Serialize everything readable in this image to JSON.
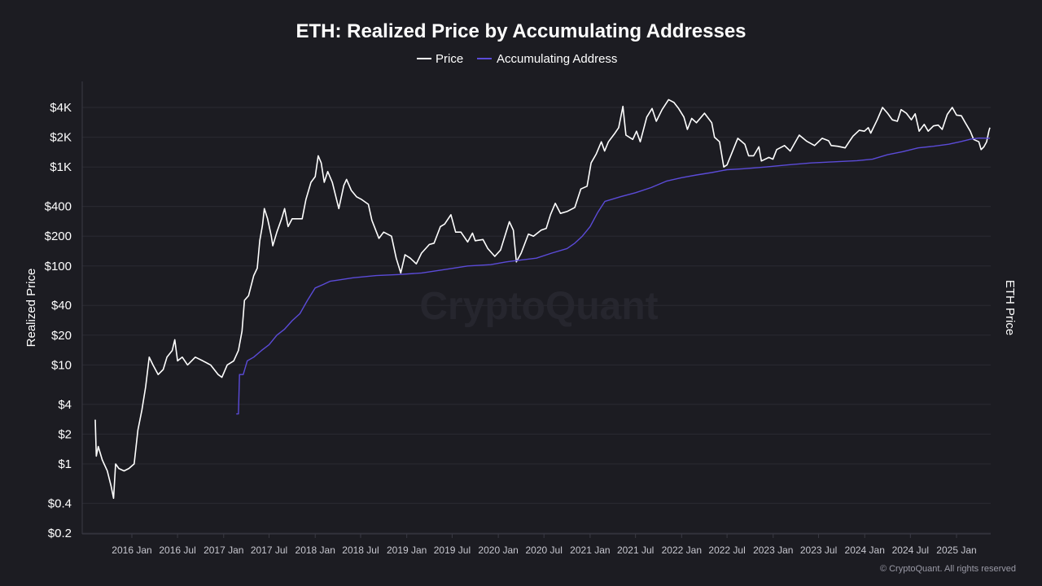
{
  "chart_data": {
    "type": "line",
    "title": "ETH: Realized Price by Accumulating Addresses",
    "ylabel": "Realized Price",
    "ylabel_right": "ETH Price",
    "yscale": "log",
    "ylim": [
      0.2,
      6000
    ],
    "yticks": [
      {
        "value": 4000,
        "label": "$4K"
      },
      {
        "value": 2000,
        "label": "$2K"
      },
      {
        "value": 1000,
        "label": "$1K"
      },
      {
        "value": 400,
        "label": "$400"
      },
      {
        "value": 200,
        "label": "$200"
      },
      {
        "value": 100,
        "label": "$100"
      },
      {
        "value": 40,
        "label": "$40"
      },
      {
        "value": 20,
        "label": "$20"
      },
      {
        "value": 10,
        "label": "$10"
      },
      {
        "value": 4,
        "label": "$4"
      },
      {
        "value": 2,
        "label": "$2"
      },
      {
        "value": 1,
        "label": "$1"
      },
      {
        "value": 0.4,
        "label": "$0.4"
      },
      {
        "value": 0.2,
        "label": "$0.2"
      }
    ],
    "xlim": [
      "2015-08-07",
      "2025-05-20"
    ],
    "xticks": [
      {
        "value": "2016-01-01",
        "label": "2016 Jan"
      },
      {
        "value": "2016-07-01",
        "label": "2016 Jul"
      },
      {
        "value": "2017-01-01",
        "label": "2017 Jan"
      },
      {
        "value": "2017-07-01",
        "label": "2017 Jul"
      },
      {
        "value": "2018-01-01",
        "label": "2018 Jan"
      },
      {
        "value": "2018-07-01",
        "label": "2018 Jul"
      },
      {
        "value": "2019-01-01",
        "label": "2019 Jan"
      },
      {
        "value": "2019-07-01",
        "label": "2019 Jul"
      },
      {
        "value": "2020-01-01",
        "label": "2020 Jan"
      },
      {
        "value": "2020-07-01",
        "label": "2020 Jul"
      },
      {
        "value": "2021-01-01",
        "label": "2021 Jan"
      },
      {
        "value": "2021-07-01",
        "label": "2021 Jul"
      },
      {
        "value": "2022-01-01",
        "label": "2022 Jan"
      },
      {
        "value": "2022-07-01",
        "label": "2022 Jul"
      },
      {
        "value": "2023-01-01",
        "label": "2023 Jan"
      },
      {
        "value": "2023-07-01",
        "label": "2023 Jul"
      },
      {
        "value": "2024-01-01",
        "label": "2024 Jan"
      },
      {
        "value": "2024-07-01",
        "label": "2024 Jul"
      },
      {
        "value": "2025-01-01",
        "label": "2025 Jan"
      }
    ],
    "grid": true,
    "legend_position": "top-center",
    "series": [
      {
        "name": "Price",
        "color": "#ffffff",
        "points": [
          [
            "2015-08-08",
            2.8
          ],
          [
            "2015-08-12",
            1.2
          ],
          [
            "2015-08-20",
            1.5
          ],
          [
            "2015-09-05",
            1.1
          ],
          [
            "2015-09-25",
            0.85
          ],
          [
            "2015-10-10",
            0.6
          ],
          [
            "2015-10-20",
            0.45
          ],
          [
            "2015-10-28",
            1.0
          ],
          [
            "2015-11-10",
            0.9
          ],
          [
            "2015-12-01",
            0.85
          ],
          [
            "2015-12-20",
            0.9
          ],
          [
            "2016-01-10",
            1.0
          ],
          [
            "2016-01-25",
            2.2
          ],
          [
            "2016-02-10",
            3.5
          ],
          [
            "2016-02-25",
            6.0
          ],
          [
            "2016-03-10",
            12
          ],
          [
            "2016-03-25",
            10
          ],
          [
            "2016-04-15",
            8
          ],
          [
            "2016-05-05",
            9
          ],
          [
            "2016-05-20",
            12
          ],
          [
            "2016-06-10",
            14
          ],
          [
            "2016-06-20",
            18
          ],
          [
            "2016-07-01",
            11
          ],
          [
            "2016-07-20",
            12
          ],
          [
            "2016-08-10",
            10
          ],
          [
            "2016-09-10",
            12
          ],
          [
            "2016-10-10",
            11
          ],
          [
            "2016-11-10",
            10
          ],
          [
            "2016-12-10",
            8
          ],
          [
            "2016-12-25",
            7.5
          ],
          [
            "2017-01-15",
            10
          ],
          [
            "2017-02-10",
            11
          ],
          [
            "2017-03-01",
            14
          ],
          [
            "2017-03-15",
            22
          ],
          [
            "2017-03-25",
            45
          ],
          [
            "2017-04-10",
            50
          ],
          [
            "2017-05-01",
            80
          ],
          [
            "2017-05-15",
            95
          ],
          [
            "2017-05-25",
            180
          ],
          [
            "2017-06-05",
            260
          ],
          [
            "2017-06-12",
            380
          ],
          [
            "2017-06-25",
            300
          ],
          [
            "2017-07-10",
            200
          ],
          [
            "2017-07-16",
            160
          ],
          [
            "2017-08-01",
            220
          ],
          [
            "2017-08-20",
            300
          ],
          [
            "2017-09-01",
            380
          ],
          [
            "2017-09-15",
            250
          ],
          [
            "2017-10-01",
            300
          ],
          [
            "2017-10-20",
            300
          ],
          [
            "2017-11-10",
            300
          ],
          [
            "2017-11-25",
            470
          ],
          [
            "2017-12-15",
            700
          ],
          [
            "2018-01-01",
            800
          ],
          [
            "2018-01-13",
            1300
          ],
          [
            "2018-01-25",
            1100
          ],
          [
            "2018-02-06",
            700
          ],
          [
            "2018-02-20",
            900
          ],
          [
            "2018-03-10",
            700
          ],
          [
            "2018-04-05",
            380
          ],
          [
            "2018-04-25",
            650
          ],
          [
            "2018-05-06",
            750
          ],
          [
            "2018-05-25",
            580
          ],
          [
            "2018-06-15",
            500
          ],
          [
            "2018-07-05",
            470
          ],
          [
            "2018-08-01",
            420
          ],
          [
            "2018-08-15",
            290
          ],
          [
            "2018-09-12",
            190
          ],
          [
            "2018-10-01",
            220
          ],
          [
            "2018-11-01",
            200
          ],
          [
            "2018-11-20",
            120
          ],
          [
            "2018-12-08",
            85
          ],
          [
            "2018-12-25",
            130
          ],
          [
            "2019-01-15",
            120
          ],
          [
            "2019-02-08",
            105
          ],
          [
            "2019-03-01",
            135
          ],
          [
            "2019-04-01",
            165
          ],
          [
            "2019-04-20",
            170
          ],
          [
            "2019-05-15",
            250
          ],
          [
            "2019-06-01",
            265
          ],
          [
            "2019-06-26",
            330
          ],
          [
            "2019-07-15",
            220
          ],
          [
            "2019-08-05",
            220
          ],
          [
            "2019-09-01",
            175
          ],
          [
            "2019-09-20",
            215
          ],
          [
            "2019-10-01",
            180
          ],
          [
            "2019-11-01",
            185
          ],
          [
            "2019-11-20",
            150
          ],
          [
            "2019-12-18",
            125
          ],
          [
            "2020-01-10",
            145
          ],
          [
            "2020-02-14",
            280
          ],
          [
            "2020-03-01",
            230
          ],
          [
            "2020-03-13",
            110
          ],
          [
            "2020-04-01",
            135
          ],
          [
            "2020-04-30",
            210
          ],
          [
            "2020-05-20",
            200
          ],
          [
            "2020-06-20",
            230
          ],
          [
            "2020-07-10",
            240
          ],
          [
            "2020-07-27",
            330
          ],
          [
            "2020-08-15",
            430
          ],
          [
            "2020-09-05",
            340
          ],
          [
            "2020-10-01",
            355
          ],
          [
            "2020-11-01",
            390
          ],
          [
            "2020-11-25",
            600
          ],
          [
            "2020-12-20",
            640
          ],
          [
            "2021-01-05",
            1100
          ],
          [
            "2021-01-25",
            1350
          ],
          [
            "2021-02-15",
            1800
          ],
          [
            "2021-02-28",
            1450
          ],
          [
            "2021-03-15",
            1800
          ],
          [
            "2021-04-10",
            2200
          ],
          [
            "2021-04-25",
            2500
          ],
          [
            "2021-05-12",
            4100
          ],
          [
            "2021-05-24",
            2100
          ],
          [
            "2021-06-20",
            1900
          ],
          [
            "2021-07-05",
            2300
          ],
          [
            "2021-07-20",
            1800
          ],
          [
            "2021-08-15",
            3200
          ],
          [
            "2021-09-05",
            3900
          ],
          [
            "2021-09-22",
            2900
          ],
          [
            "2021-10-15",
            3800
          ],
          [
            "2021-11-10",
            4800
          ],
          [
            "2021-12-01",
            4500
          ],
          [
            "2021-12-20",
            3900
          ],
          [
            "2022-01-10",
            3200
          ],
          [
            "2022-01-24",
            2400
          ],
          [
            "2022-02-10",
            3100
          ],
          [
            "2022-03-01",
            2800
          ],
          [
            "2022-04-02",
            3500
          ],
          [
            "2022-05-01",
            2800
          ],
          [
            "2022-05-12",
            2000
          ],
          [
            "2022-06-01",
            1800
          ],
          [
            "2022-06-18",
            1000
          ],
          [
            "2022-07-01",
            1050
          ],
          [
            "2022-08-13",
            1950
          ],
          [
            "2022-09-10",
            1700
          ],
          [
            "2022-09-25",
            1300
          ],
          [
            "2022-10-15",
            1300
          ],
          [
            "2022-11-05",
            1600
          ],
          [
            "2022-11-15",
            1150
          ],
          [
            "2022-12-15",
            1250
          ],
          [
            "2022-12-31",
            1200
          ],
          [
            "2023-01-15",
            1500
          ],
          [
            "2023-02-15",
            1650
          ],
          [
            "2023-03-10",
            1450
          ],
          [
            "2023-04-15",
            2100
          ],
          [
            "2023-05-15",
            1820
          ],
          [
            "2023-06-15",
            1650
          ],
          [
            "2023-07-15",
            1950
          ],
          [
            "2023-08-10",
            1840
          ],
          [
            "2023-08-20",
            1650
          ],
          [
            "2023-09-15",
            1620
          ],
          [
            "2023-10-15",
            1560
          ],
          [
            "2023-10-31",
            1800
          ],
          [
            "2023-11-15",
            2050
          ],
          [
            "2023-12-10",
            2350
          ],
          [
            "2023-12-31",
            2300
          ],
          [
            "2024-01-15",
            2500
          ],
          [
            "2024-01-25",
            2200
          ],
          [
            "2024-02-20",
            3000
          ],
          [
            "2024-03-12",
            4000
          ],
          [
            "2024-04-01",
            3500
          ],
          [
            "2024-04-20",
            3000
          ],
          [
            "2024-05-10",
            2900
          ],
          [
            "2024-05-25",
            3800
          ],
          [
            "2024-06-15",
            3500
          ],
          [
            "2024-07-05",
            3000
          ],
          [
            "2024-07-20",
            3450
          ],
          [
            "2024-08-05",
            2300
          ],
          [
            "2024-08-25",
            2700
          ],
          [
            "2024-09-10",
            2300
          ],
          [
            "2024-10-01",
            2600
          ],
          [
            "2024-10-20",
            2650
          ],
          [
            "2024-11-05",
            2400
          ],
          [
            "2024-11-25",
            3400
          ],
          [
            "2024-12-15",
            4000
          ],
          [
            "2025-01-01",
            3350
          ],
          [
            "2025-01-20",
            3300
          ],
          [
            "2025-02-05",
            2800
          ],
          [
            "2025-02-25",
            2300
          ],
          [
            "2025-03-10",
            1900
          ],
          [
            "2025-03-31",
            1800
          ],
          [
            "2025-04-09",
            1500
          ],
          [
            "2025-04-20",
            1600
          ],
          [
            "2025-05-01",
            1800
          ],
          [
            "2025-05-10",
            2300
          ],
          [
            "2025-05-14",
            2500
          ]
        ]
      },
      {
        "name": "Accumulating Address",
        "color": "#5b4bd8",
        "points": [
          [
            "2017-02-20",
            3.2
          ],
          [
            "2017-03-01",
            3.2
          ],
          [
            "2017-03-05",
            8.0
          ],
          [
            "2017-03-20",
            8.0
          ],
          [
            "2017-04-05",
            11
          ],
          [
            "2017-05-01",
            12
          ],
          [
            "2017-06-01",
            14
          ],
          [
            "2017-07-01",
            16
          ],
          [
            "2017-08-01",
            20
          ],
          [
            "2017-09-01",
            23
          ],
          [
            "2017-10-01",
            28
          ],
          [
            "2017-11-01",
            33
          ],
          [
            "2017-12-01",
            45
          ],
          [
            "2018-01-01",
            60
          ],
          [
            "2018-02-01",
            65
          ],
          [
            "2018-03-01",
            70
          ],
          [
            "2018-04-01",
            72
          ],
          [
            "2018-06-01",
            76
          ],
          [
            "2018-09-01",
            80
          ],
          [
            "2018-12-01",
            82
          ],
          [
            "2019-03-01",
            85
          ],
          [
            "2019-06-01",
            92
          ],
          [
            "2019-09-01",
            100
          ],
          [
            "2019-12-01",
            103
          ],
          [
            "2020-02-01",
            110
          ],
          [
            "2020-04-01",
            115
          ],
          [
            "2020-06-01",
            120
          ],
          [
            "2020-08-01",
            135
          ],
          [
            "2020-10-01",
            150
          ],
          [
            "2020-11-01",
            170
          ],
          [
            "2020-12-01",
            200
          ],
          [
            "2021-01-01",
            250
          ],
          [
            "2021-02-01",
            350
          ],
          [
            "2021-03-01",
            450
          ],
          [
            "2021-05-01",
            500
          ],
          [
            "2021-07-01",
            550
          ],
          [
            "2021-09-01",
            620
          ],
          [
            "2021-11-01",
            720
          ],
          [
            "2022-01-01",
            780
          ],
          [
            "2022-03-01",
            830
          ],
          [
            "2022-05-01",
            880
          ],
          [
            "2022-07-01",
            940
          ],
          [
            "2022-09-01",
            960
          ],
          [
            "2022-12-01",
            1000
          ],
          [
            "2023-03-01",
            1050
          ],
          [
            "2023-06-01",
            1100
          ],
          [
            "2023-09-01",
            1130
          ],
          [
            "2023-12-01",
            1160
          ],
          [
            "2024-02-01",
            1200
          ],
          [
            "2024-04-01",
            1330
          ],
          [
            "2024-06-01",
            1430
          ],
          [
            "2024-08-01",
            1560
          ],
          [
            "2024-10-01",
            1620
          ],
          [
            "2024-12-01",
            1700
          ],
          [
            "2025-01-15",
            1800
          ],
          [
            "2025-03-01",
            1920
          ],
          [
            "2025-04-01",
            1960
          ],
          [
            "2025-05-14",
            1950
          ]
        ]
      }
    ],
    "watermark": "CryptoQuant",
    "copyright": "© CryptoQuant. All rights reserved"
  }
}
